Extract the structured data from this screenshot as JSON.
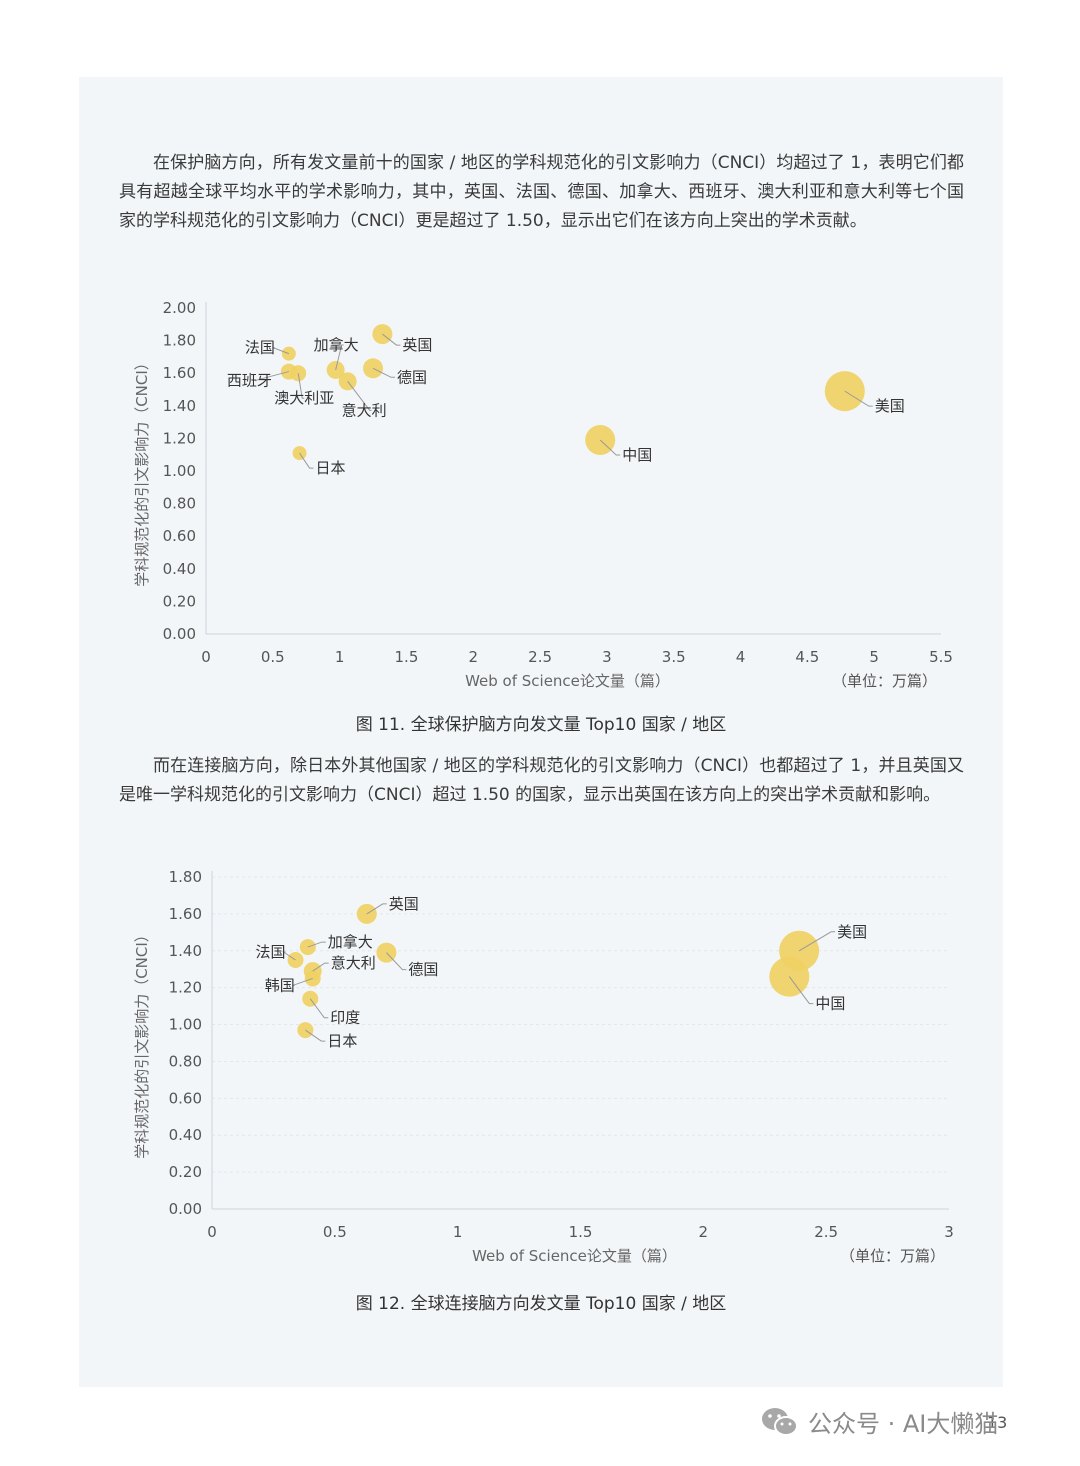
{
  "paragraph1": "在保护脑方向，所有发文量前十的国家 / 地区的学科规范化的引文影响力（CNCI）均超过了 1，表明它们都具有超越全球平均水平的学术影响力，其中，英国、法国、德国、加拿大、西班牙、澳大利亚和意大利等七个国家的学科规范化的引文影响力（CNCI）更是超过了 1.50，显示出它们在该方向上突出的学术贡献。",
  "paragraph2": "而在连接脑方向，除日本外其他国家 / 地区的学科规范化的引文影响力（CNCI）也都超过了 1，并且英国又是唯一学科规范化的引文影响力（CNCI）超过 1.50 的国家，显示出英国在该方向上的突出学术贡献和影响。",
  "chart_data": [
    {
      "type": "scatter",
      "caption": "图 11. 全球保护脑方向发文量 Top10 国家 / 地区",
      "xlabel": "Web of Science论文量（篇）",
      "unit_label": "（单位：万篇）",
      "ylabel": "学科规范化的引文影响力（CNCI）",
      "xlim": [
        0,
        5.5
      ],
      "ylim": [
        0,
        2.0
      ],
      "x_ticks": [
        "0",
        "0.5",
        "1",
        "1.5",
        "2",
        "2.5",
        "3",
        "3.5",
        "4",
        "4.5",
        "5",
        "5.5"
      ],
      "y_ticks": [
        "0.00",
        "0.20",
        "0.40",
        "0.60",
        "0.80",
        "1.00",
        "1.20",
        "1.40",
        "1.60",
        "1.80",
        "2.00"
      ],
      "grid": false,
      "bubble_color": "#f0d063",
      "points": [
        {
          "label": "美国",
          "x": 4.78,
          "y": 1.49
        },
        {
          "label": "中国",
          "x": 2.95,
          "y": 1.19
        },
        {
          "label": "英国",
          "x": 1.32,
          "y": 1.84
        },
        {
          "label": "德国",
          "x": 1.25,
          "y": 1.63
        },
        {
          "label": "意大利",
          "x": 1.06,
          "y": 1.55
        },
        {
          "label": "加拿大",
          "x": 0.97,
          "y": 1.62
        },
        {
          "label": "澳大利亚",
          "x": 0.69,
          "y": 1.6
        },
        {
          "label": "西班牙",
          "x": 0.62,
          "y": 1.61
        },
        {
          "label": "法国",
          "x": 0.62,
          "y": 1.72
        },
        {
          "label": "日本",
          "x": 0.7,
          "y": 1.11
        }
      ]
    },
    {
      "type": "scatter",
      "caption": "图 12. 全球连接脑方向发文量 Top10 国家 / 地区",
      "xlabel": "Web of Science论文量（篇）",
      "unit_label": "（单位：万篇）",
      "ylabel": "学科规范化的引文影响力（CNCI）",
      "xlim": [
        0,
        3
      ],
      "ylim": [
        0,
        1.8
      ],
      "x_ticks": [
        "0",
        "0.5",
        "1",
        "1.5",
        "2",
        "2.5",
        "3"
      ],
      "y_ticks": [
        "0.00",
        "0.20",
        "0.40",
        "0.60",
        "0.80",
        "1.00",
        "1.20",
        "1.40",
        "1.60",
        "1.80"
      ],
      "grid": true,
      "bubble_color": "#f0d063",
      "points": [
        {
          "label": "美国",
          "x": 2.39,
          "y": 1.4
        },
        {
          "label": "中国",
          "x": 2.35,
          "y": 1.26
        },
        {
          "label": "英国",
          "x": 0.63,
          "y": 1.6
        },
        {
          "label": "德国",
          "x": 0.71,
          "y": 1.39
        },
        {
          "label": "意大利",
          "x": 0.41,
          "y": 1.29
        },
        {
          "label": "加拿大",
          "x": 0.39,
          "y": 1.42
        },
        {
          "label": "法国",
          "x": 0.34,
          "y": 1.35
        },
        {
          "label": "韩国",
          "x": 0.41,
          "y": 1.25
        },
        {
          "label": "印度",
          "x": 0.4,
          "y": 1.14
        },
        {
          "label": "日本",
          "x": 0.38,
          "y": 0.97
        }
      ]
    }
  ],
  "page_number": "13",
  "watermark": "公众号 · AI大懒猫"
}
